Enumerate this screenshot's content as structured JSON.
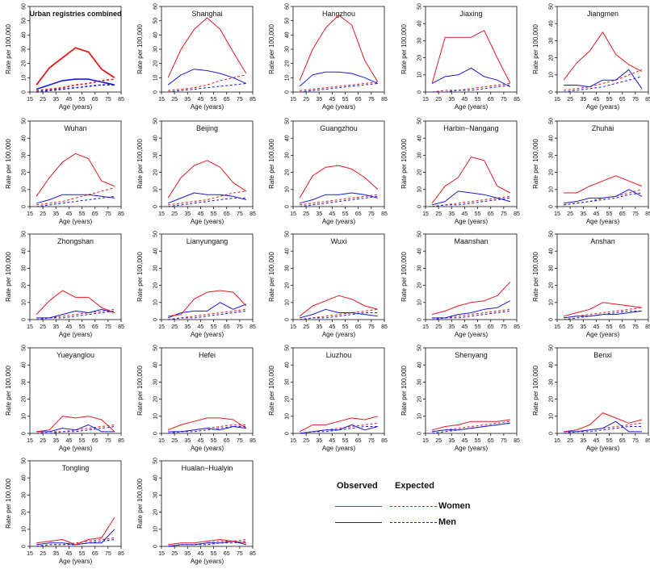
{
  "chart_data": {
    "type": "line",
    "figure": "Age-specific incidence rates by registry, observed vs expected, women and men",
    "shared_axes": {
      "xlabel": "Age (years)",
      "ylabel": "Rate per 100,000",
      "x_ticks": [
        15,
        25,
        35,
        45,
        55,
        65,
        75,
        85
      ],
      "y_ticks": [
        0,
        10,
        20,
        30,
        40,
        50,
        60
      ],
      "xlim": [
        15,
        85
      ]
    },
    "ages": [
      20,
      30,
      40,
      50,
      60,
      70,
      80
    ],
    "legend": {
      "observed_label": "Observed",
      "expected_label": "Expected",
      "women_label": "Women",
      "men_label": "Men",
      "women_color": "#e41a1c",
      "men_color": "#1a1adb"
    },
    "panels": [
      {
        "title": "Urban registries combined",
        "bold": true,
        "ylim": [
          0,
          60
        ],
        "women_obs": [
          5,
          17,
          24,
          31,
          28,
          16,
          10
        ],
        "men_obs": [
          2,
          5,
          8,
          9,
          9,
          7,
          5
        ],
        "women_exp": [
          1,
          2,
          3,
          5,
          6,
          8,
          9
        ],
        "men_exp": [
          0,
          1,
          2,
          3,
          4,
          5,
          5
        ]
      },
      {
        "title": "Shanghai",
        "ylim": [
          0,
          60
        ],
        "women_obs": [
          10,
          30,
          44,
          52,
          44,
          28,
          13
        ],
        "men_obs": [
          5,
          12,
          16,
          15,
          13,
          10,
          6
        ],
        "women_exp": [
          1,
          2,
          3,
          5,
          8,
          10,
          12
        ],
        "men_exp": [
          0,
          1,
          2,
          3,
          4,
          5,
          6
        ]
      },
      {
        "title": "Hangzhou",
        "ylim": [
          0,
          60
        ],
        "women_obs": [
          8,
          30,
          45,
          54,
          47,
          22,
          7
        ],
        "men_obs": [
          4,
          12,
          14,
          14,
          13,
          10,
          6
        ],
        "women_exp": [
          1,
          2,
          3,
          4,
          5,
          6,
          7
        ],
        "men_exp": [
          0,
          1,
          2,
          3,
          4,
          5,
          6
        ]
      },
      {
        "title": "Jiaxing",
        "ylim": [
          0,
          50
        ],
        "women_obs": [
          5,
          32,
          32,
          32,
          36,
          20,
          5
        ],
        "men_obs": [
          5,
          9,
          10,
          14,
          9,
          7,
          3
        ],
        "women_exp": [
          0,
          1,
          1,
          2,
          3,
          4,
          5
        ],
        "men_exp": [
          0,
          0,
          1,
          1,
          2,
          3,
          4
        ]
      },
      {
        "title": "Jiangmen",
        "ylim": [
          0,
          50
        ],
        "women_obs": [
          7,
          17,
          24,
          35,
          22,
          16,
          12
        ],
        "men_obs": [
          4,
          4,
          3,
          7,
          7,
          13,
          2
        ],
        "women_exp": [
          1,
          2,
          3,
          5,
          7,
          10,
          13
        ],
        "men_exp": [
          0,
          1,
          2,
          3,
          5,
          7,
          9
        ]
      },
      {
        "title": "Wuhan",
        "ylim": [
          0,
          50
        ],
        "women_obs": [
          6,
          17,
          26,
          31,
          28,
          15,
          12
        ],
        "men_obs": [
          2,
          4,
          7,
          7,
          7,
          6,
          5
        ],
        "women_exp": [
          1,
          2,
          3,
          5,
          7,
          9,
          11
        ],
        "men_exp": [
          0,
          1,
          2,
          3,
          4,
          5,
          6
        ]
      },
      {
        "title": "Beijing",
        "ylim": [
          0,
          50
        ],
        "women_obs": [
          5,
          17,
          24,
          27,
          23,
          14,
          9
        ],
        "men_obs": [
          2,
          5,
          8,
          7,
          7,
          6,
          4
        ],
        "women_exp": [
          1,
          2,
          3,
          4,
          6,
          8,
          9
        ],
        "men_exp": [
          0,
          1,
          2,
          3,
          4,
          5,
          5
        ]
      },
      {
        "title": "Guangzhou",
        "ylim": [
          0,
          50
        ],
        "women_obs": [
          5,
          18,
          23,
          24,
          22,
          17,
          10
        ],
        "men_obs": [
          2,
          4,
          7,
          7,
          8,
          7,
          5
        ],
        "women_exp": [
          1,
          2,
          3,
          4,
          5,
          6,
          7
        ],
        "men_exp": [
          0,
          1,
          2,
          3,
          4,
          5,
          6
        ]
      },
      {
        "title": "Harbin−Nangang",
        "ylim": [
          0,
          50
        ],
        "women_obs": [
          2,
          12,
          17,
          29,
          27,
          12,
          8
        ],
        "men_obs": [
          1,
          3,
          9,
          8,
          7,
          5,
          3
        ],
        "women_exp": [
          0,
          1,
          2,
          3,
          4,
          5,
          6
        ],
        "men_exp": [
          0,
          1,
          1,
          2,
          3,
          4,
          5
        ]
      },
      {
        "title": "Zhuhai",
        "ylim": [
          0,
          50
        ],
        "women_obs": [
          8,
          8,
          12,
          15,
          18,
          15,
          12
        ],
        "men_obs": [
          2,
          3,
          5,
          5,
          6,
          10,
          6
        ],
        "women_exp": [
          1,
          2,
          3,
          5,
          6,
          8,
          10
        ],
        "men_exp": [
          1,
          2,
          3,
          4,
          5,
          7,
          8
        ]
      },
      {
        "title": "Zhongshan",
        "ylim": [
          0,
          50
        ],
        "women_obs": [
          3,
          11,
          17,
          13,
          13,
          7,
          4
        ],
        "men_obs": [
          1,
          1,
          3,
          5,
          4,
          6,
          4
        ],
        "women_exp": [
          1,
          1,
          2,
          3,
          4,
          5,
          6
        ],
        "men_exp": [
          0,
          1,
          1,
          2,
          3,
          4,
          5
        ]
      },
      {
        "title": "Lianyungang",
        "ylim": [
          0,
          50
        ],
        "women_obs": [
          2,
          3,
          12,
          16,
          17,
          16,
          8
        ],
        "men_obs": [
          1,
          4,
          5,
          5,
          10,
          6,
          9
        ],
        "women_exp": [
          0,
          1,
          2,
          3,
          4,
          5,
          6
        ],
        "men_exp": [
          0,
          1,
          1,
          2,
          3,
          4,
          5
        ]
      },
      {
        "title": "Wuxi",
        "ylim": [
          0,
          50
        ],
        "women_obs": [
          2,
          8,
          11,
          14,
          12,
          8,
          6
        ],
        "men_obs": [
          1,
          3,
          6,
          4,
          4,
          3,
          2
        ],
        "women_exp": [
          0,
          1,
          2,
          3,
          4,
          5,
          6
        ],
        "men_exp": [
          0,
          1,
          1,
          2,
          3,
          4,
          4
        ]
      },
      {
        "title": "Maanshan",
        "ylim": [
          0,
          50
        ],
        "women_obs": [
          3,
          5,
          8,
          10,
          11,
          14,
          22
        ],
        "men_obs": [
          1,
          1,
          3,
          4,
          6,
          7,
          11
        ],
        "women_exp": [
          1,
          1,
          2,
          3,
          4,
          5,
          6
        ],
        "men_exp": [
          0,
          1,
          1,
          2,
          3,
          4,
          5
        ]
      },
      {
        "title": "Anshan",
        "ylim": [
          0,
          50
        ],
        "women_obs": [
          2,
          4,
          6,
          10,
          9,
          8,
          7
        ],
        "men_obs": [
          1,
          2,
          2,
          3,
          3,
          4,
          5
        ],
        "women_exp": [
          1,
          2,
          3,
          4,
          5,
          6,
          7
        ],
        "men_exp": [
          0,
          1,
          2,
          3,
          4,
          5,
          5
        ]
      },
      {
        "title": "Yueyanglou",
        "ylim": [
          0,
          50
        ],
        "women_obs": [
          1,
          2,
          10,
          9,
          10,
          8,
          1
        ],
        "men_obs": [
          1,
          1,
          3,
          2,
          5,
          1,
          1
        ],
        "women_exp": [
          0,
          1,
          1,
          2,
          3,
          4,
          5
        ],
        "men_exp": [
          0,
          0,
          1,
          1,
          2,
          3,
          4
        ]
      },
      {
        "title": "Hefei",
        "ylim": [
          0,
          50
        ],
        "women_obs": [
          2,
          5,
          7,
          9,
          9,
          8,
          3
        ],
        "men_obs": [
          1,
          1,
          2,
          3,
          2,
          4,
          3
        ],
        "women_exp": [
          0,
          1,
          2,
          3,
          4,
          5,
          5
        ],
        "men_exp": [
          0,
          1,
          1,
          2,
          3,
          4,
          4
        ]
      },
      {
        "title": "Liuzhou",
        "ylim": [
          0,
          50
        ],
        "women_obs": [
          1,
          5,
          5,
          7,
          9,
          8,
          10
        ],
        "men_obs": [
          0,
          1,
          2,
          2,
          5,
          2,
          4
        ],
        "women_exp": [
          0,
          1,
          2,
          3,
          4,
          5,
          6
        ],
        "men_exp": [
          0,
          1,
          1,
          2,
          3,
          4,
          4
        ]
      },
      {
        "title": "Shenyang",
        "ylim": [
          0,
          50
        ],
        "women_obs": [
          2,
          4,
          5,
          7,
          7,
          7,
          8
        ],
        "men_obs": [
          1,
          2,
          2,
          3,
          4,
          5,
          6
        ],
        "women_exp": [
          1,
          2,
          3,
          4,
          5,
          6,
          7
        ],
        "men_exp": [
          0,
          1,
          2,
          3,
          4,
          5,
          6
        ]
      },
      {
        "title": "Benxi",
        "ylim": [
          0,
          50
        ],
        "women_obs": [
          1,
          2,
          5,
          12,
          9,
          6,
          8
        ],
        "men_obs": [
          1,
          1,
          2,
          3,
          7,
          1,
          1
        ],
        "women_exp": [
          0,
          1,
          2,
          3,
          4,
          5,
          6
        ],
        "men_exp": [
          0,
          1,
          1,
          2,
          3,
          4,
          4
        ]
      },
      {
        "title": "Tongling",
        "ylim": [
          0,
          50
        ],
        "women_obs": [
          2,
          3,
          4,
          1,
          4,
          5,
          17
        ],
        "men_obs": [
          1,
          2,
          2,
          1,
          2,
          2,
          10
        ],
        "women_exp": [
          0,
          1,
          1,
          2,
          3,
          4,
          5
        ],
        "men_exp": [
          0,
          1,
          1,
          1,
          2,
          3,
          4
        ]
      },
      {
        "title": "Hualan−Hualyin",
        "ylim": [
          0,
          50
        ],
        "women_obs": [
          1,
          2,
          2,
          3,
          4,
          3,
          2
        ],
        "men_obs": [
          0,
          1,
          1,
          2,
          2,
          3,
          1
        ],
        "women_exp": [
          0,
          1,
          1,
          2,
          3,
          3,
          4
        ],
        "men_exp": [
          0,
          1,
          1,
          1,
          2,
          2,
          3
        ]
      }
    ]
  }
}
